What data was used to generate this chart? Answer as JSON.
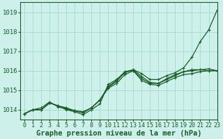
{
  "title": "Graphe pression niveau de la mer (hPa)",
  "background_color": "#cef0ea",
  "grid_color": "#9dd4c8",
  "line_color": "#1a5c2a",
  "marker_color": "#1a5c2a",
  "xlim": [
    -0.5,
    23
  ],
  "ylim": [
    1013.5,
    1019.5
  ],
  "yticks": [
    1014,
    1015,
    1016,
    1017,
    1018,
    1019
  ],
  "xticks": [
    0,
    1,
    2,
    3,
    4,
    5,
    6,
    7,
    8,
    9,
    10,
    11,
    12,
    13,
    14,
    15,
    16,
    17,
    18,
    19,
    20,
    21,
    22,
    23
  ],
  "series": [
    [
      1013.8,
      1014.0,
      1014.0,
      1014.35,
      1014.2,
      1014.0,
      1013.9,
      1013.75,
      1014.0,
      1014.3,
      1015.3,
      1015.55,
      1015.95,
      1016.05,
      1015.85,
      1015.55,
      1015.55,
      1015.75,
      1015.9,
      1016.15,
      1016.7,
      1017.5,
      1018.1,
      1019.1
    ],
    [
      1013.8,
      1014.0,
      1014.0,
      1014.35,
      1014.2,
      1014.05,
      1013.95,
      1013.9,
      1014.1,
      1014.5,
      1015.15,
      1015.45,
      1015.95,
      1016.0,
      1015.6,
      1015.35,
      1015.35,
      1015.55,
      1015.75,
      1015.95,
      1016.0,
      1016.05,
      1016.0,
      1016.0
    ],
    [
      1013.8,
      1014.0,
      1014.0,
      1014.35,
      1014.2,
      1014.1,
      1013.95,
      1013.85,
      1014.1,
      1014.5,
      1015.1,
      1015.35,
      1015.8,
      1016.0,
      1015.5,
      1015.3,
      1015.25,
      1015.45,
      1015.65,
      1015.8,
      1015.85,
      1015.95,
      1016.0,
      1016.0
    ],
    [
      1013.8,
      1014.0,
      1014.1,
      1014.4,
      1014.15,
      1014.05,
      1013.95,
      1013.85,
      1014.1,
      1014.5,
      1015.2,
      1015.5,
      1015.9,
      1016.05,
      1015.7,
      1015.4,
      1015.35,
      1015.6,
      1015.8,
      1015.95,
      1016.05,
      1016.05,
      1016.1,
      1016.0
    ]
  ],
  "title_fontsize": 7.5,
  "tick_fontsize": 6,
  "linewidth": 0.9,
  "markersize": 2.8
}
